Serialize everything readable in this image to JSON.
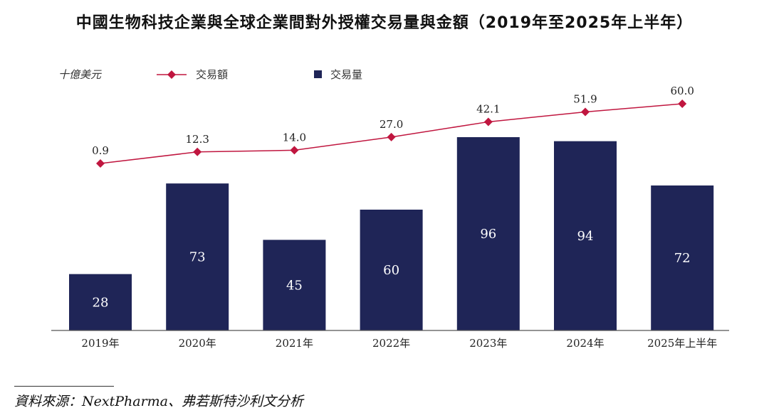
{
  "title": "中國生物科技企業與全球企業間對外授權交易量與金額（2019年至2025年上半年）",
  "source": "資料來源：NextPharma、弗若斯特沙利文分析",
  "colors": {
    "bar": "#1f2557",
    "line": "#c0163f",
    "axis": "#555555"
  },
  "chart_data": {
    "type": "bar",
    "title": "中國生物科技企業與全球企業間對外授權交易量與金額（2019年至2025年上半年）",
    "unit_label": "十億美元",
    "categories": [
      "2019年",
      "2020年",
      "2021年",
      "2022年",
      "2023年",
      "2024年",
      "2025年上半年"
    ],
    "series": [
      {
        "name": "交易量",
        "type": "bar",
        "values": [
          28,
          73,
          45,
          60,
          96,
          94,
          72
        ]
      },
      {
        "name": "交易額",
        "type": "line",
        "values": [
          0.9,
          12.3,
          14.0,
          27.0,
          42.1,
          51.9,
          60.0
        ]
      }
    ],
    "value_labels": {
      "bar": [
        "28",
        "73",
        "45",
        "60",
        "96",
        "94",
        "72"
      ],
      "line": [
        "0.9",
        "12.3",
        "14.0",
        "27.0",
        "42.1",
        "51.9",
        "60.0"
      ]
    },
    "ylim_bar": [
      0,
      96
    ],
    "ylim_line": [
      0,
      60
    ],
    "legend": [
      {
        "name": "交易額",
        "marker": "diamond-line"
      },
      {
        "name": "交易量",
        "marker": "square"
      }
    ],
    "legend_position": "top-left"
  }
}
